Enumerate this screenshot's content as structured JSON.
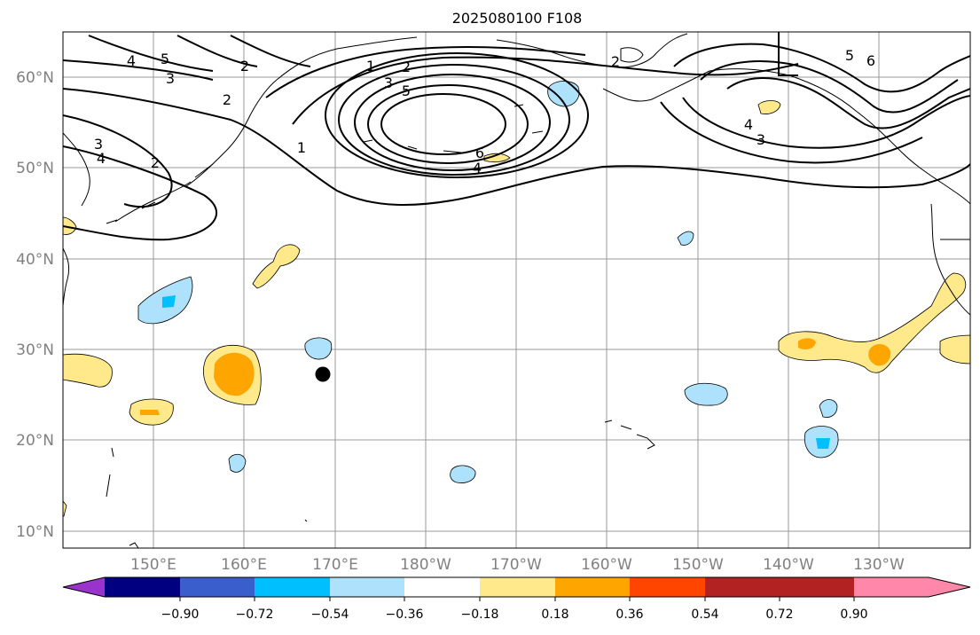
{
  "title": "2025080100 F108",
  "lat_labels": [
    "60°N",
    "50°N",
    "40°N",
    "30°N",
    "20°N",
    "10°N"
  ],
  "lon_labels": [
    "150°E",
    "160°E",
    "170°E",
    "180°W",
    "170°W",
    "160°W",
    "150°W",
    "140°W",
    "130°W"
  ],
  "colorbar": {
    "ticks": [
      "−0.90",
      "−0.72",
      "−0.54",
      "−0.36",
      "−0.18",
      "0.18",
      "0.36",
      "0.54",
      "0.72",
      "0.90"
    ],
    "colors": [
      "#9933cc",
      "#000080",
      "#3a5fcd",
      "#00bfff",
      "#aee1fb",
      "#ffffff",
      "#ffe98a",
      "#ffa500",
      "#ff4500",
      "#b22222",
      "#ff88aa"
    ]
  },
  "contour_labels": [
    "5",
    "4",
    "3",
    "2",
    "1",
    "2",
    "3",
    "5",
    "6",
    "4",
    "2",
    "5",
    "6",
    "4",
    "3",
    "3",
    "4",
    "2",
    "1",
    "2"
  ],
  "marker": "storm-center-dot"
}
